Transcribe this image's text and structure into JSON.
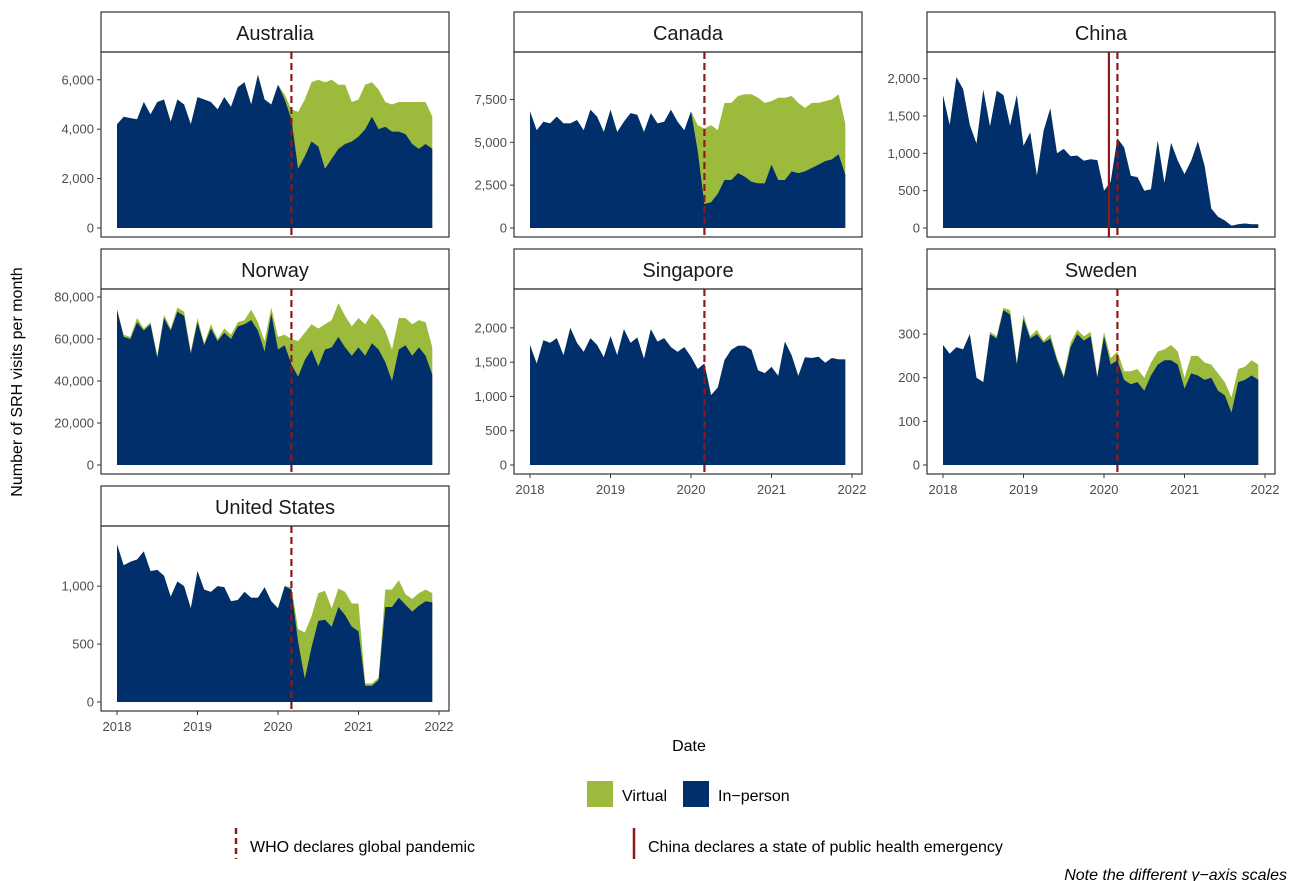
{
  "chart_data": {
    "type": "area",
    "layout": "faceted-stacked-area",
    "ylabel": "Number of SRH visits per month",
    "xlabel": "Date",
    "x_range": [
      "2018-01",
      "2021-12"
    ],
    "x_ticks": [
      "2018",
      "2019",
      "2020",
      "2021",
      "2022"
    ],
    "series_names": [
      "Virtual",
      "In−person"
    ],
    "legend": {
      "position": "bottom",
      "items": [
        {
          "name": "Virtual",
          "color": "#9cba3b"
        },
        {
          "name": "In−person",
          "color": "#002f6c"
        }
      ]
    },
    "reference_lines": [
      {
        "label": "WHO declares global pandemic",
        "date": "2020-03",
        "style": "dashed",
        "color": "#8b1a1a",
        "panels": "all"
      },
      {
        "label": "China declares a state of public health emergency",
        "date": "2020-01-23",
        "style": "solid",
        "color": "#8b1a1a",
        "panels": [
          "China"
        ]
      }
    ],
    "note": "Note the different y−axis scales",
    "panels": [
      {
        "title": "Australia",
        "ylim": [
          0,
          6800
        ],
        "yticks": [
          0,
          2000,
          4000,
          6000
        ],
        "ytick_labels": [
          "0",
          "2,000",
          "4,000",
          "6,000"
        ],
        "in_person": [
          4200,
          4500,
          4450,
          4400,
          5100,
          4600,
          5100,
          5200,
          4300,
          5200,
          5000,
          4200,
          5300,
          5200,
          5100,
          4800,
          5300,
          4900,
          5700,
          5900,
          5000,
          6200,
          5200,
          5000,
          5800,
          5200,
          4400,
          2400,
          2900,
          3500,
          3300,
          2400,
          2800,
          3200,
          3400,
          3500,
          3700,
          4000,
          4500,
          4000,
          4100,
          3900,
          3900,
          3800,
          3400,
          3200,
          3400,
          3200
        ],
        "virtual": [
          0,
          0,
          0,
          0,
          0,
          0,
          0,
          0,
          0,
          0,
          0,
          0,
          0,
          0,
          0,
          0,
          0,
          0,
          0,
          0,
          0,
          0,
          0,
          0,
          0,
          200,
          400,
          2300,
          2300,
          2400,
          2700,
          3500,
          3200,
          2600,
          2400,
          1600,
          1500,
          1800,
          1400,
          1600,
          1000,
          1100,
          1200,
          1300,
          1700,
          1900,
          1700,
          1300
        ]
      },
      {
        "title": "Canada",
        "ylim": [
          0,
          9800
        ],
        "yticks": [
          0,
          2500,
          5000,
          7500
        ],
        "ytick_labels": [
          "0",
          "2,500",
          "5,000",
          "7,500"
        ],
        "in_person": [
          6800,
          5700,
          6200,
          6100,
          6500,
          6100,
          6100,
          6300,
          5700,
          6900,
          6500,
          5600,
          6900,
          5600,
          6200,
          6700,
          6600,
          5600,
          6700,
          6100,
          6200,
          6900,
          6200,
          5700,
          6800,
          4500,
          1400,
          1500,
          2000,
          2800,
          2800,
          3200,
          3000,
          2700,
          2600,
          2600,
          3700,
          2800,
          2800,
          3300,
          3200,
          3300,
          3500,
          3700,
          3900,
          4000,
          4300,
          3100
        ],
        "virtual": [
          0,
          0,
          0,
          0,
          0,
          0,
          0,
          0,
          0,
          0,
          0,
          0,
          0,
          0,
          0,
          0,
          0,
          0,
          0,
          0,
          0,
          0,
          0,
          0,
          0,
          1500,
          4400,
          4500,
          3700,
          4500,
          4500,
          4500,
          4800,
          5100,
          5000,
          4700,
          3700,
          4800,
          4800,
          4400,
          4100,
          3700,
          3800,
          3600,
          3500,
          3500,
          3500,
          3000
        ]
      },
      {
        "title": "China",
        "ylim": [
          0,
          2250
        ],
        "yticks": [
          0,
          500,
          1000,
          1500,
          2000
        ],
        "ytick_labels": [
          "0",
          "500",
          "1,000",
          "1,500",
          "2,000"
        ],
        "in_person": [
          1780,
          1380,
          2020,
          1860,
          1380,
          1130,
          1850,
          1360,
          1840,
          1780,
          1370,
          1780,
          1100,
          1280,
          700,
          1300,
          1600,
          1000,
          1060,
          960,
          970,
          900,
          920,
          910,
          500,
          620,
          1200,
          1080,
          700,
          680,
          500,
          520,
          1170,
          600,
          1140,
          900,
          720,
          900,
          1160,
          830,
          260,
          150,
          100,
          30,
          50,
          60,
          50,
          50
        ],
        "virtual": [
          0,
          0,
          0,
          0,
          0,
          0,
          0,
          0,
          0,
          0,
          0,
          0,
          0,
          0,
          0,
          0,
          0,
          0,
          0,
          0,
          0,
          0,
          0,
          0,
          0,
          0,
          0,
          0,
          0,
          0,
          0,
          0,
          0,
          0,
          0,
          0,
          0,
          0,
          0,
          0,
          0,
          0,
          0,
          0,
          0,
          0,
          0,
          0
        ]
      },
      {
        "title": "Norway",
        "ylim": [
          0,
          80000
        ],
        "yticks": [
          0,
          20000,
          40000,
          60000,
          80000
        ],
        "ytick_labels": [
          "0",
          "20,000",
          "40,000",
          "60,000",
          "80,000"
        ],
        "in_person": [
          74000,
          61000,
          60000,
          68000,
          64000,
          67000,
          51000,
          70000,
          64000,
          73000,
          71000,
          53000,
          68000,
          57000,
          65000,
          59000,
          63000,
          60000,
          66000,
          67000,
          69000,
          64000,
          54000,
          72000,
          55000,
          57000,
          48000,
          42000,
          50000,
          55000,
          47000,
          55000,
          56000,
          61000,
          56000,
          52000,
          56000,
          52000,
          58000,
          55000,
          49000,
          40000,
          55000,
          57000,
          52000,
          56000,
          52000,
          43000
        ],
        "virtual": [
          0,
          1000,
          1000,
          2000,
          1000,
          1000,
          1000,
          1500,
          1000,
          2000,
          2000,
          1000,
          2000,
          1000,
          2000,
          1000,
          2000,
          2000,
          2000,
          2000,
          5000,
          4000,
          5000,
          3000,
          6000,
          5000,
          12000,
          17000,
          13000,
          12000,
          18000,
          12000,
          13000,
          16000,
          15000,
          14000,
          14000,
          15000,
          14000,
          14000,
          15000,
          15000,
          15000,
          13000,
          15000,
          13000,
          16000,
          13000
        ]
      },
      {
        "title": "Singapore",
        "ylim": [
          0,
          2450
        ],
        "yticks": [
          0,
          500,
          1000,
          1500,
          2000
        ],
        "ytick_labels": [
          "0",
          "500",
          "1,000",
          "1,500",
          "2,000"
        ],
        "in_person": [
          1750,
          1480,
          1820,
          1780,
          1850,
          1600,
          2000,
          1780,
          1650,
          1850,
          1750,
          1570,
          1880,
          1600,
          1980,
          1780,
          1860,
          1550,
          1980,
          1800,
          1850,
          1720,
          1650,
          1720,
          1580,
          1400,
          1480,
          1020,
          1130,
          1530,
          1680,
          1740,
          1740,
          1680,
          1380,
          1340,
          1430,
          1300,
          1800,
          1600,
          1300,
          1570,
          1560,
          1580,
          1490,
          1560,
          1540,
          1540
        ],
        "virtual": [
          0,
          0,
          0,
          0,
          0,
          0,
          0,
          0,
          0,
          0,
          0,
          0,
          0,
          0,
          0,
          0,
          0,
          0,
          0,
          0,
          0,
          0,
          0,
          0,
          0,
          0,
          0,
          0,
          0,
          0,
          0,
          0,
          0,
          0,
          0,
          0,
          0,
          0,
          0,
          0,
          0,
          0,
          0,
          0,
          0,
          0,
          0,
          0
        ]
      },
      {
        "title": "Sweden",
        "ylim": [
          0,
          385
        ],
        "yticks": [
          0,
          100,
          200,
          300
        ],
        "ytick_labels": [
          "0",
          "100",
          "200",
          "300"
        ],
        "in_person": [
          275,
          255,
          270,
          265,
          300,
          200,
          190,
          300,
          290,
          355,
          345,
          230,
          335,
          290,
          300,
          280,
          290,
          240,
          200,
          270,
          300,
          285,
          295,
          200,
          295,
          230,
          240,
          195,
          185,
          190,
          170,
          205,
          230,
          240,
          240,
          230,
          175,
          210,
          205,
          195,
          200,
          170,
          160,
          120,
          190,
          195,
          205,
          195
        ],
        "virtual": [
          0,
          0,
          0,
          0,
          0,
          0,
          0,
          5,
          5,
          5,
          10,
          5,
          10,
          5,
          10,
          5,
          10,
          5,
          5,
          10,
          10,
          10,
          10,
          5,
          10,
          15,
          20,
          20,
          30,
          30,
          30,
          30,
          30,
          25,
          35,
          30,
          25,
          40,
          45,
          40,
          30,
          40,
          30,
          35,
          30,
          30,
          35,
          35
        ]
      },
      {
        "title": "United States",
        "ylim": [
          0,
          1450
        ],
        "yticks": [
          0,
          500,
          1000
        ],
        "ytick_labels": [
          "0",
          "500",
          "1,000"
        ],
        "in_person": [
          1360,
          1180,
          1210,
          1230,
          1300,
          1130,
          1140,
          1090,
          910,
          1040,
          1000,
          810,
          1130,
          970,
          950,
          1000,
          990,
          870,
          880,
          950,
          900,
          900,
          990,
          870,
          810,
          1000,
          970,
          520,
          200,
          470,
          700,
          710,
          650,
          820,
          750,
          650,
          610,
          140,
          140,
          190,
          820,
          820,
          900,
          840,
          780,
          830,
          870,
          860
        ],
        "virtual": [
          0,
          0,
          0,
          0,
          0,
          0,
          0,
          0,
          0,
          0,
          0,
          0,
          0,
          0,
          0,
          0,
          0,
          0,
          0,
          0,
          0,
          0,
          0,
          0,
          0,
          0,
          20,
          110,
          400,
          270,
          240,
          250,
          160,
          160,
          200,
          200,
          240,
          20,
          20,
          20,
          150,
          150,
          150,
          90,
          110,
          110,
          100,
          80
        ]
      }
    ]
  }
}
